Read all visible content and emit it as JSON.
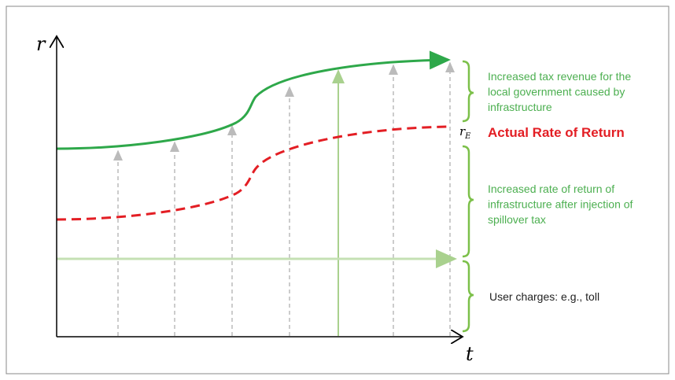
{
  "axes": {
    "y_label": "r",
    "x_label": "t"
  },
  "rate_label": {
    "base": "r",
    "subscript": "E",
    "text": "Actual Rate of Return"
  },
  "annotations": [
    {
      "lines": [
        "Increased tax revenue for the",
        "local government caused by",
        "infrastructure"
      ]
    },
    {
      "lines": [
        "Increased rate of return of",
        "infrastructure after injection of",
        "spillover tax"
      ]
    },
    {
      "lines": [
        "User charges: e.g., toll"
      ]
    }
  ]
}
